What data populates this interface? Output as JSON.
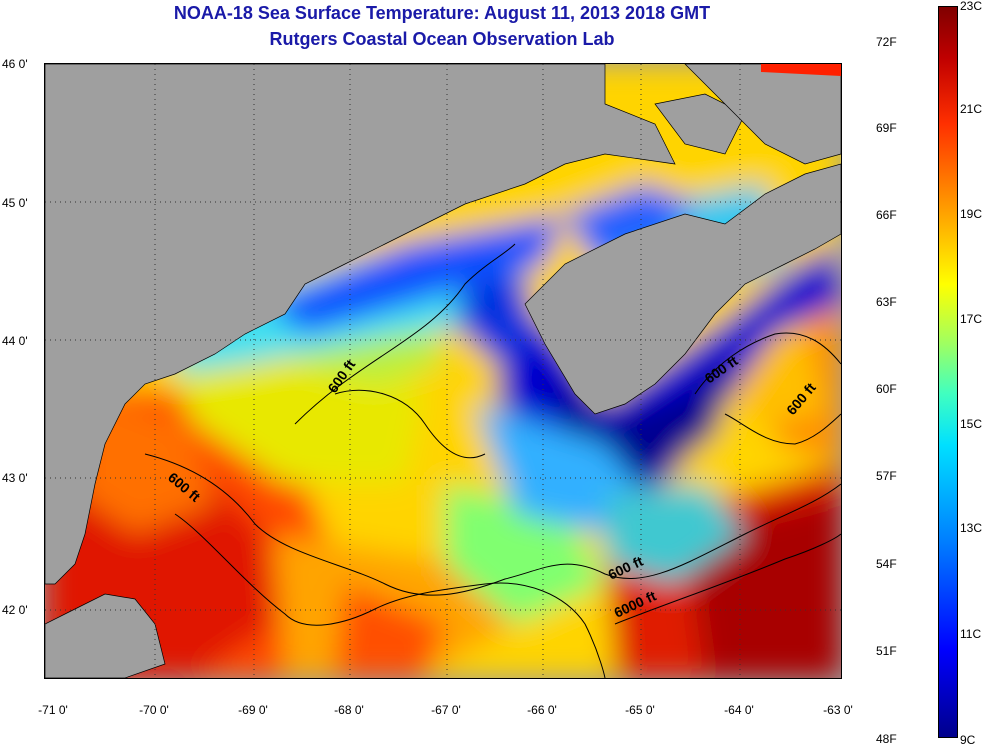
{
  "title": "NOAA-18 Sea Surface Temperature:  August 11, 2013 2018 GMT",
  "subtitle": "Rutgers Coastal Ocean Observation Lab",
  "lat_ticks": [
    "46 0'",
    "45 0'",
    "44 0'",
    "43 0'",
    "42 0'"
  ],
  "lon_ticks": [
    "-71 0'",
    "-70 0'",
    "-69 0'",
    "-68 0'",
    "-67 0'",
    "-66 0'",
    "-65 0'",
    "-64 0'",
    "-63 0'"
  ],
  "contour_labels": [
    "600 ft",
    "600 ft",
    "600 ft",
    "600 ft",
    "600 ft",
    "6000 ft"
  ],
  "colorbar": {
    "fahrenheit": [
      "72F",
      "69F",
      "66F",
      "63F",
      "60F",
      "57F",
      "54F",
      "51F",
      "48F"
    ],
    "celsius": [
      "23C",
      "21C",
      "19C",
      "17C",
      "15C",
      "13C",
      "11C",
      "9C"
    ]
  },
  "colors": {
    "land": "#9f9f9f",
    "title": "#1a1aa8",
    "cold": "#00008b",
    "warm": "#800000"
  }
}
